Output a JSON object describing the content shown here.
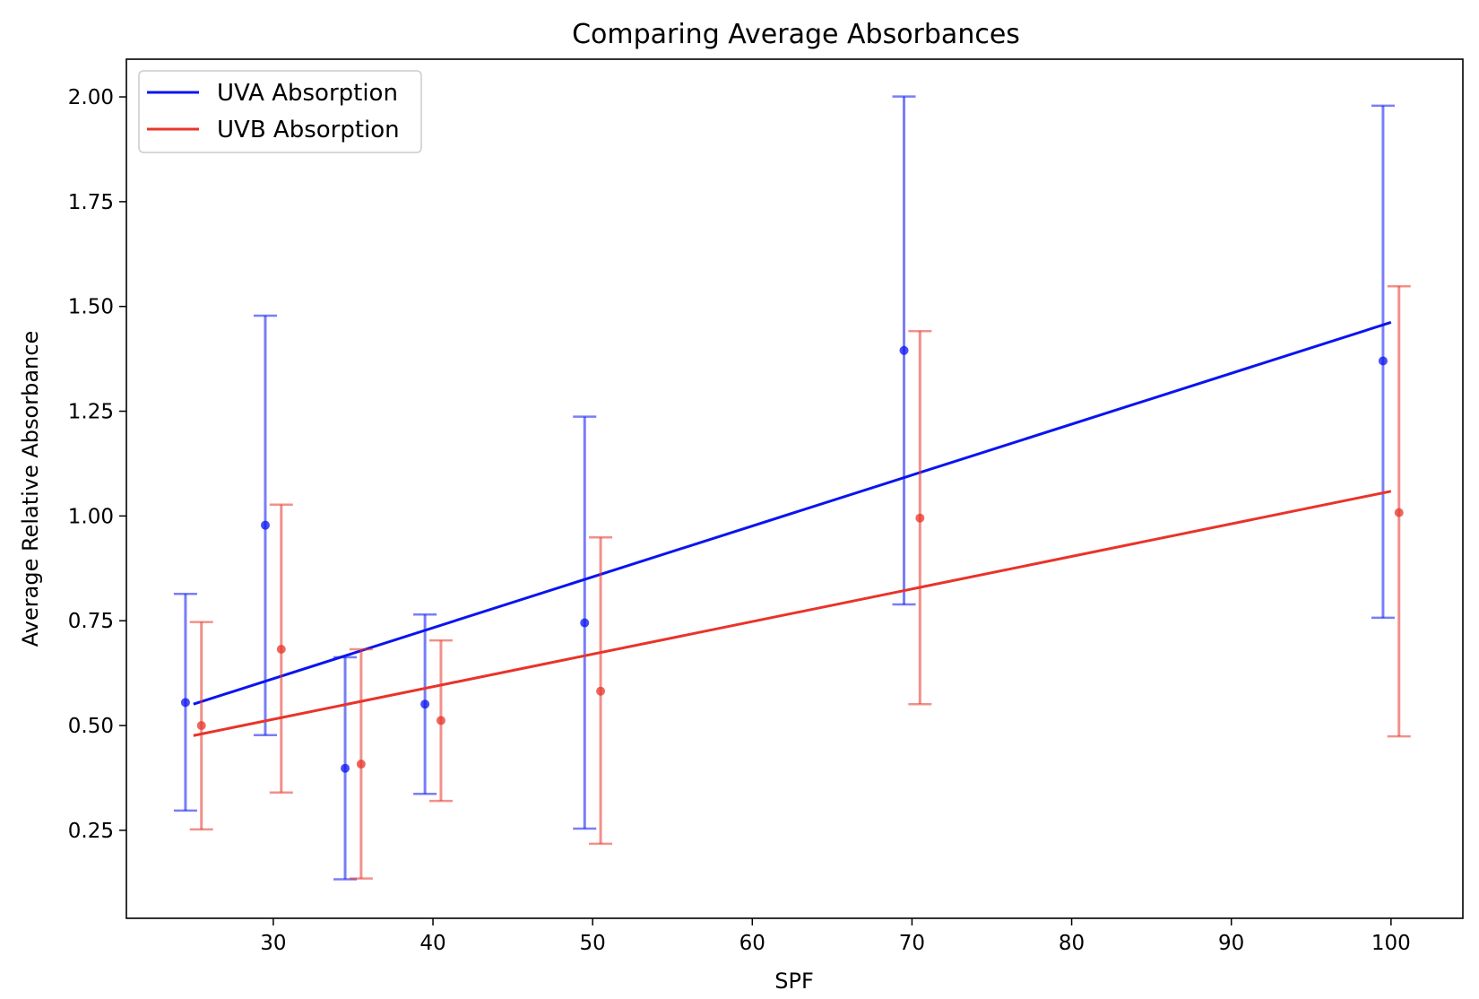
{
  "chart_data": {
    "type": "scatter",
    "title": "Comparing Average Absorbances",
    "xlabel": "SPF",
    "ylabel": "Average Relative Absorbance",
    "xlim": [
      20.8,
      104.5
    ],
    "ylim": [
      0.04,
      2.09
    ],
    "xticks": [
      30,
      40,
      50,
      60,
      70,
      80,
      90,
      100
    ],
    "yticks": [
      0.25,
      0.5,
      0.75,
      1.0,
      1.25,
      1.5,
      1.75,
      2.0
    ],
    "ytick_labels": [
      "0.25",
      "0.50",
      "0.75",
      "1.00",
      "1.25",
      "1.50",
      "1.75",
      "2.00"
    ],
    "grid": false,
    "legend_position": "top-left",
    "series": [
      {
        "name": "UVA Absorption",
        "color": "#0a14f0",
        "x": [
          24.5,
          29.5,
          34.5,
          39.5,
          49.5,
          69.5,
          99.5
        ],
        "y": [
          0.555,
          0.978,
          0.398,
          0.551,
          0.745,
          1.395,
          1.37
        ],
        "err_low": [
          0.297,
          0.477,
          0.133,
          0.337,
          0.254,
          0.789,
          0.757
        ],
        "err_high": [
          0.814,
          1.478,
          0.663,
          0.765,
          1.237,
          2.001,
          1.979
        ],
        "fit": {
          "x": [
            25,
            100
          ],
          "y": [
            0.551,
            1.462
          ]
        }
      },
      {
        "name": "UVB Absorption",
        "color": "#e8342a",
        "x": [
          25.5,
          30.5,
          35.5,
          40.5,
          50.5,
          70.5,
          100.5
        ],
        "y": [
          0.5,
          0.682,
          0.408,
          0.512,
          0.582,
          0.995,
          1.008
        ],
        "err_low": [
          0.252,
          0.34,
          0.135,
          0.32,
          0.218,
          0.551,
          0.474
        ],
        "err_high": [
          0.747,
          1.027,
          0.682,
          0.703,
          0.949,
          1.441,
          1.548
        ],
        "fit": {
          "x": [
            25,
            100
          ],
          "y": [
            0.476,
            1.059
          ]
        }
      }
    ]
  }
}
